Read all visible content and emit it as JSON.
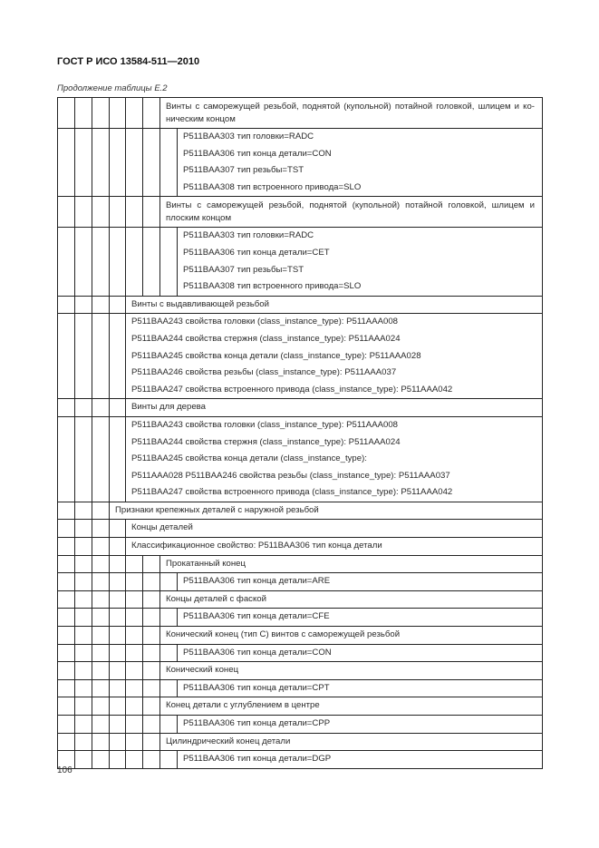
{
  "header": {
    "title": "ГОСТ Р ИСО 13584-511—2010"
  },
  "caption": "Продолжение таблицы Е.2",
  "rows": [
    {
      "depth": 6,
      "wrap": true,
      "lines": [
        "Винты с саморежущей резьбой, поднятой (купольной) потайной головкой, шлицем и ко-ническим концом"
      ]
    },
    {
      "depth": 7,
      "lines": [
        "P511BAA303 тип головки=RADC",
        "P511BAA306 тип конца детали=CON",
        "P511BAA307 тип резьбы=TST",
        "P511BAA308 тип встроенного привода=SLO"
      ]
    },
    {
      "depth": 6,
      "wrap": true,
      "lines": [
        "Винты с саморежущей резьбой, поднятой (купольной) потайной головкой, шлицем и плоским концом"
      ]
    },
    {
      "depth": 7,
      "lines": [
        "P511BAA303 тип головки=RADC",
        "P511BAA306 тип конца детали=CET",
        "P511BAA307 тип резьбы=TST",
        "P511BAA308 тип встроенного привода=SLO"
      ]
    },
    {
      "depth": 4,
      "lines": [
        "Винты с выдавливающей резьбой"
      ]
    },
    {
      "depth": 4,
      "lines": [
        "P511BAA243 свойства головки (class_instance_type): P511AAA008",
        "P511BAA244 свойства стержня (class_instance_type): P511AAA024",
        "P511BAA245 свойства конца детали (class_instance_type): P511AAA028",
        "P511BAA246 свойства резьбы (class_instance_type): P511AAA037",
        "P511BAA247 свойства встроенного привода (class_instance_type): P511AAA042"
      ]
    },
    {
      "depth": 4,
      "lines": [
        "Винты для дерева"
      ]
    },
    {
      "depth": 4,
      "lines": [
        "P511BAA243 свойства головки (class_instance_type): P511AAA008",
        "P511BAA244 свойства стержня (class_instance_type): P511AAA024",
        "P511BAA245 свойства конца детали (class_instance_type):",
        "P511AAA028 P511BAA246 свойства резьбы (class_instance_type): P511AAA037",
        "P511BAA247 свойства встроенного привода (class_instance_type): P511AAA042"
      ]
    },
    {
      "depth": 3,
      "lines": [
        "Признаки крепежных деталей с наружной резьбой"
      ]
    },
    {
      "depth": 4,
      "lines": [
        "Концы деталей"
      ]
    },
    {
      "depth": 4,
      "lines": [
        "Классификационное свойство: P511BAA306 тип конца детали"
      ]
    },
    {
      "depth": 6,
      "lines": [
        "Прокатанный конец"
      ]
    },
    {
      "depth": 7,
      "lines": [
        "P511BAA306 тип конца детали=ARE"
      ]
    },
    {
      "depth": 6,
      "lines": [
        "Концы деталей с фаской"
      ]
    },
    {
      "depth": 7,
      "lines": [
        "P511BAA306 тип конца детали=CFE"
      ]
    },
    {
      "depth": 6,
      "lines": [
        "Конический конец (тип С) винтов с саморежущей резьбой"
      ]
    },
    {
      "depth": 7,
      "lines": [
        "P511BAA306 тип конца детали=CON"
      ]
    },
    {
      "depth": 6,
      "lines": [
        "Конический конец"
      ]
    },
    {
      "depth": 7,
      "lines": [
        "P511BAA306 тип конца детали=CPT"
      ]
    },
    {
      "depth": 6,
      "lines": [
        "Конец детали с углублением в центре"
      ]
    },
    {
      "depth": 7,
      "lines": [
        "P511BAA306 тип конца детали=CPP"
      ]
    },
    {
      "depth": 6,
      "lines": [
        "Цилиндрический конец детали"
      ]
    },
    {
      "depth": 7,
      "lines": [
        "P511BAA306 тип конца детали=DGP"
      ]
    }
  ],
  "footer": {
    "page_number": "106"
  }
}
